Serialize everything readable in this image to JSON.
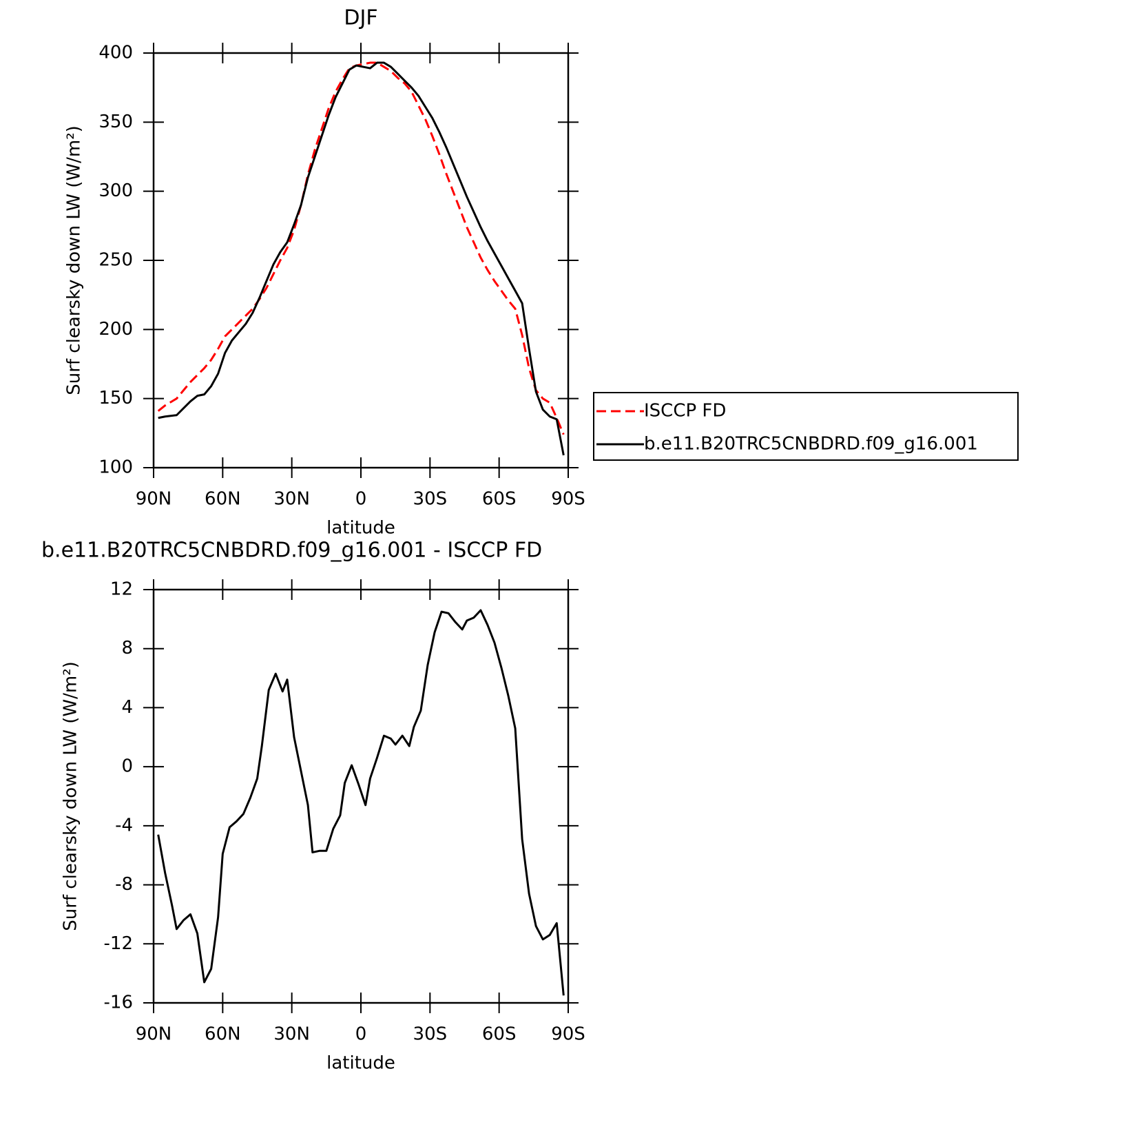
{
  "chart_data": [
    {
      "type": "line",
      "title": "DJF",
      "xlabel": "latitude",
      "ylabel": "Surf clearsky down LW (W/m²)",
      "x": [
        88,
        85,
        80,
        77,
        74,
        71,
        68,
        65,
        62,
        59,
        56,
        53,
        50,
        47,
        44,
        41,
        38,
        35,
        32,
        29,
        26,
        23,
        20,
        17,
        14,
        11,
        8,
        5,
        2,
        -1,
        -4,
        -7,
        -10,
        -13,
        -16,
        -19,
        -22,
        -25,
        -28,
        -31,
        -34,
        -37,
        -40,
        -43,
        -46,
        -49,
        -52,
        -55,
        -58,
        -61,
        -64,
        -67,
        -70,
        -73,
        -76,
        -79,
        -82,
        -85,
        -88
      ],
      "xlim": [
        90,
        -90
      ],
      "xticks": [
        {
          "value": 90,
          "label": "90N"
        },
        {
          "value": 60,
          "label": "60N"
        },
        {
          "value": 30,
          "label": "30N"
        },
        0,
        {
          "value": -30,
          "label": "30S"
        },
        {
          "value": -60,
          "label": "60S"
        },
        {
          "value": -90,
          "label": "90S"
        }
      ],
      "ylim": [
        100,
        400
      ],
      "yticks": [
        100,
        150,
        200,
        250,
        300,
        350,
        400
      ],
      "legend": "right",
      "series": [
        {
          "name": "ISCCP FD",
          "color": "#ff0000",
          "dash": true,
          "values": [
            141,
            145,
            150,
            156,
            162,
            167,
            172,
            178,
            186,
            195,
            200,
            205,
            210,
            215,
            222,
            230,
            240,
            250,
            259,
            272,
            290,
            312,
            330,
            345,
            360,
            372,
            381,
            389,
            391,
            392,
            393,
            393,
            390,
            387,
            382,
            378,
            372,
            362,
            352,
            340,
            327,
            313,
            300,
            287,
            274,
            263,
            252,
            243,
            235,
            228,
            221,
            215,
            196,
            172,
            156,
            150,
            147,
            136,
            124
          ]
        },
        {
          "name": "b.e11.B20TRC5CNBDRD.f09_g16.001",
          "color": "#000000",
          "dash": false,
          "values": [
            136,
            137,
            138,
            143,
            148,
            152,
            153,
            159,
            168,
            183,
            192,
            198,
            204,
            212,
            223,
            235,
            247,
            256,
            263,
            276,
            290,
            310,
            325,
            340,
            355,
            368,
            378,
            388,
            391,
            390,
            389,
            393,
            393,
            390,
            385,
            380,
            375,
            369,
            361,
            353,
            343,
            332,
            320,
            308,
            296,
            285,
            274,
            264,
            255,
            246,
            237,
            228,
            219,
            186,
            155,
            142,
            137,
            135,
            109
          ]
        }
      ]
    },
    {
      "type": "line",
      "title": "b.e11.B20TRC5CNBDRD.f09_g16.001 - ISCCP FD",
      "xlabel": "latitude",
      "ylabel": "Surf clearsky down LW (W/m²)",
      "x": [
        88,
        85,
        82,
        80,
        77,
        74,
        71,
        68,
        65,
        62,
        60,
        57,
        54,
        51,
        48,
        45,
        43,
        40,
        37,
        34,
        32,
        29,
        26,
        23,
        21,
        18,
        15,
        12,
        9,
        7,
        4,
        1,
        -2,
        -4,
        -7,
        -10,
        -13,
        -15,
        -18,
        -21,
        -23,
        -26,
        -29,
        -32,
        -35,
        -38,
        -41,
        -44,
        -46,
        -49,
        -52,
        -55,
        -58,
        -61,
        -64,
        -67,
        -70,
        -73,
        -76,
        -79,
        -82,
        -85,
        -88
      ],
      "xlim": [
        90,
        -90
      ],
      "xticks": [
        {
          "value": 90,
          "label": "90N"
        },
        {
          "value": 60,
          "label": "60N"
        },
        {
          "value": 30,
          "label": "30N"
        },
        0,
        {
          "value": -30,
          "label": "30S"
        },
        {
          "value": -60,
          "label": "60S"
        },
        {
          "value": -90,
          "label": "90S"
        }
      ],
      "ylim": [
        -16,
        12
      ],
      "yticks": [
        -16,
        -12,
        -8,
        -4,
        0,
        4,
        8,
        12
      ],
      "series": [
        {
          "color": "#000000",
          "dash": false,
          "values": [
            -4.6,
            -7.2,
            -9.4,
            -11.0,
            -10.4,
            -10.0,
            -11.3,
            -14.6,
            -13.7,
            -10.2,
            -5.9,
            -4.1,
            -3.7,
            -3.2,
            -2.1,
            -0.8,
            1.4,
            5.2,
            6.3,
            5.1,
            5.9,
            2.0,
            -0.3,
            -2.6,
            -5.8,
            -5.7,
            -5.7,
            -4.2,
            -3.3,
            -1.1,
            0.1,
            -1.2,
            -2.6,
            -0.8,
            0.6,
            2.1,
            1.9,
            1.5,
            2.1,
            1.4,
            2.7,
            3.8,
            6.9,
            9.1,
            10.5,
            10.4,
            9.8,
            9.3,
            9.9,
            10.1,
            10.6,
            9.6,
            8.4,
            6.7,
            4.8,
            2.6,
            -4.9,
            -8.6,
            -10.8,
            -11.7,
            -11.4,
            -10.6,
            -15.5
          ]
        }
      ]
    }
  ]
}
